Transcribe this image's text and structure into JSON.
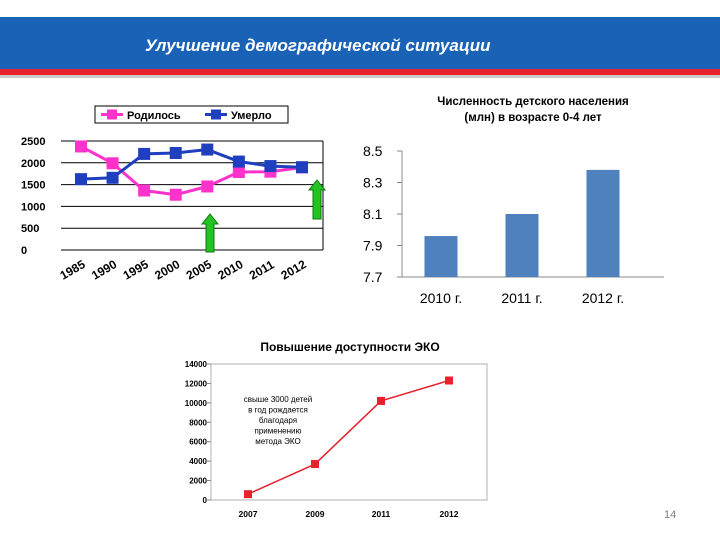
{
  "header": {
    "title": "Улучшение демографической ситуации"
  },
  "page_number": "14",
  "colors": {
    "born": "#ff33cc",
    "died": "#1f3fbf",
    "bar": "#4f81bd",
    "eco": "#e8212e",
    "arrow": "#22c322"
  },
  "chart_data": [
    {
      "type": "line",
      "title": "",
      "legend": [
        "Родилось",
        "Умерло"
      ],
      "legend_placement": "top",
      "categories": [
        "1985",
        "1990",
        "1995",
        "2000",
        "2005",
        "2010",
        "2011",
        "2012"
      ],
      "series": [
        {
          "name": "Родилось",
          "values": [
            2375,
            1989,
            1364,
            1267,
            1457,
            1789,
            1796,
            1896
          ]
        },
        {
          "name": "Умерло",
          "values": [
            1625,
            1656,
            2204,
            2225,
            2304,
            2028,
            1925,
            1898
          ]
        }
      ],
      "ylim": [
        0,
        2500
      ],
      "yticks": [
        "0",
        "500",
        "1000",
        "1500",
        "2000",
        "2500"
      ],
      "grid": true
    },
    {
      "type": "bar",
      "title": "Численность детского населения (млн) в возрасте 0-4 лет",
      "categories": [
        "2010 г.",
        "2011 г.",
        "2012 г."
      ],
      "values": [
        7.96,
        8.1,
        8.38
      ],
      "ylim": [
        7.7,
        8.5
      ],
      "yticks": [
        "7.7",
        "7.9",
        "8.1",
        "8.3",
        "8.5"
      ],
      "grid": false
    },
    {
      "type": "line",
      "title": "Повышение доступности ЭКО",
      "categories": [
        "2007",
        "2009",
        "2011",
        "2012"
      ],
      "values": [
        600,
        3700,
        10200,
        12300
      ],
      "ylim": [
        0,
        14000
      ],
      "yticks": [
        "0",
        "2000",
        "4000",
        "6000",
        "8000",
        "10000",
        "12000",
        "14000"
      ],
      "annotation": "свыше 3000 детей в год рождается благодаря применению метода ЭКО",
      "grid": false
    }
  ]
}
